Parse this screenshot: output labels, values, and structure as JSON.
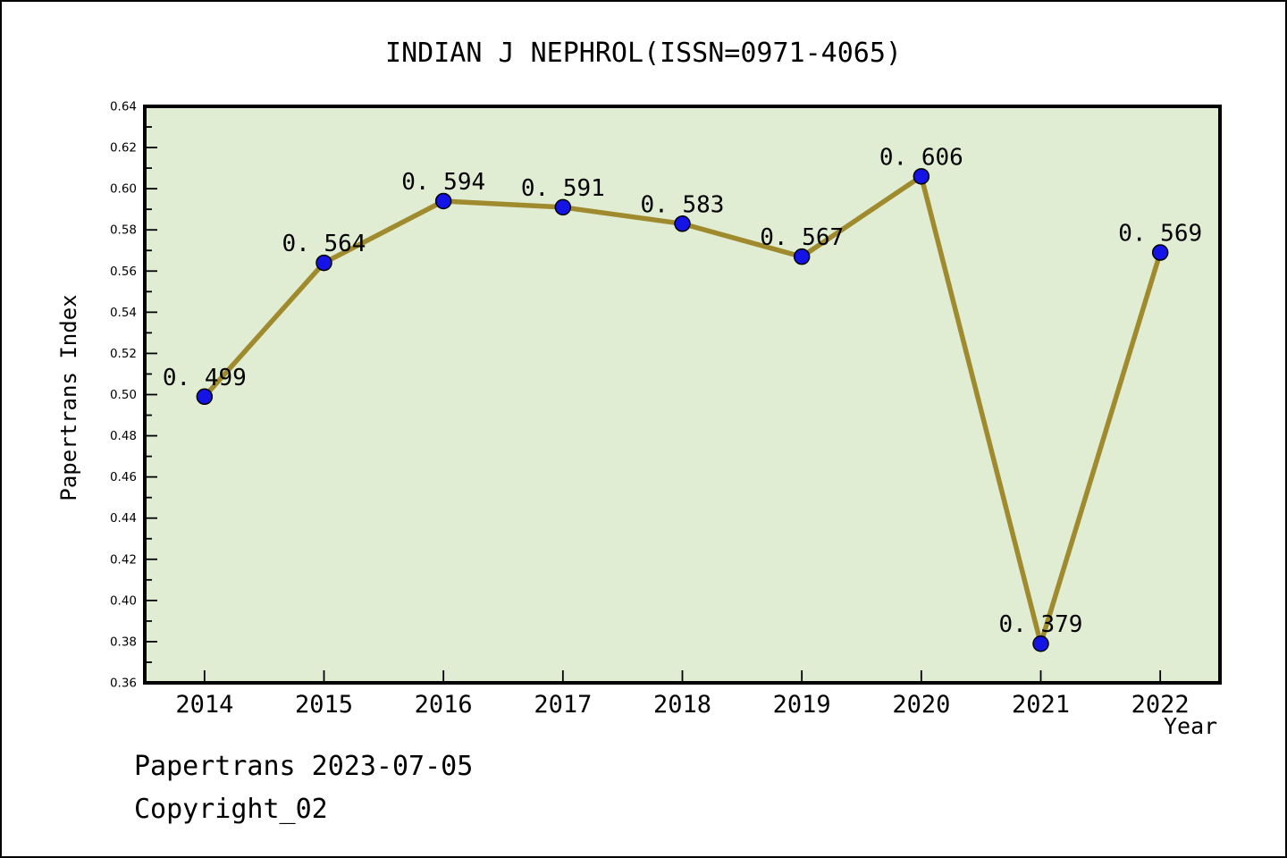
{
  "figure": {
    "footer_line1": "Papertrans 2023-07-05",
    "footer_line2": "Copyright_02"
  },
  "chart_data": {
    "type": "line",
    "title": "INDIAN J NEPHROL(ISSN=0971-4065)",
    "xlabel": "Year",
    "ylabel": "Papertrans Index",
    "x": [
      2014,
      2015,
      2016,
      2017,
      2018,
      2019,
      2020,
      2021,
      2022
    ],
    "series": [
      {
        "name": "Papertrans Index",
        "values": [
          0.499,
          0.564,
          0.594,
          0.591,
          0.583,
          0.567,
          0.606,
          0.379,
          0.569
        ]
      }
    ],
    "point_labels": [
      "0. 499",
      "0. 564",
      "0. 594",
      "0. 591",
      "0. 583",
      "0. 567",
      "0. 606",
      "0. 379",
      "0. 569"
    ],
    "xlim": [
      2013.5,
      2022.5
    ],
    "ylim": [
      0.36,
      0.64
    ],
    "yticks": [
      "0.36",
      "0.38",
      "0.40",
      "0.42",
      "0.44",
      "0.46",
      "0.48",
      "0.50",
      "0.52",
      "0.54",
      "0.56",
      "0.58",
      "0.60",
      "0.62",
      "0.64"
    ],
    "ytick_minor_step": 0.01,
    "grid": false,
    "legend": "none",
    "colors": {
      "figure_background": "#ffffff",
      "plot_background": "#e0edd2",
      "line": "#a08a2e",
      "marker_fill": "#1414e6",
      "marker_edge": "#000000",
      "axis": "#000000",
      "text": "#000000"
    }
  }
}
